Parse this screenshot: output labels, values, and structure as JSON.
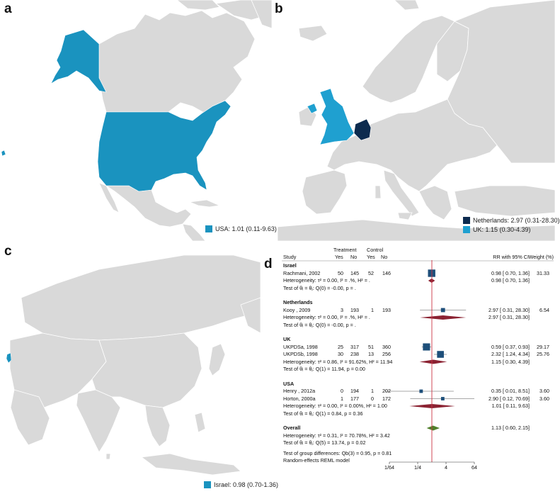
{
  "panels": {
    "a": {
      "letter": "a",
      "legend": [
        {
          "label": "USA: 1.01 (0.11-9.63)",
          "color": "#1a93bf"
        }
      ]
    },
    "b": {
      "letter": "b",
      "legend": [
        {
          "label": "Netherlands: 2.97 (0.31-28.30)",
          "color": "#0d2b4f"
        },
        {
          "label": "UK: 1.15 (0.30-4.39)",
          "color": "#1fa0d0"
        }
      ]
    },
    "c": {
      "letter": "c",
      "legend": [
        {
          "label": "Israel: 0.98 (0.70-1.36)",
          "color": "#1a93bf"
        }
      ]
    },
    "d": {
      "letter": "d"
    }
  },
  "map_colors": {
    "land": "#d9d9d9",
    "border": "#ffffff",
    "highlight": "#1a93bf"
  },
  "forest": {
    "header": {
      "study": "Study",
      "treatment": "Treatment",
      "control": "Control",
      "yes1": "Yes",
      "no1": "No",
      "yes2": "Yes",
      "no2": "No",
      "rr": "RR with 95% CI",
      "weight": "Weight (%)"
    },
    "groups": [
      {
        "name": "Israel",
        "studies": [
          {
            "study": "Rachmani, 2002",
            "ty": "50",
            "tn": "145",
            "cy": "52",
            "cn": "146",
            "rr": 0.98,
            "lo": 0.7,
            "hi": 1.36,
            "ci": "0.98 [  0.70,   1.36]",
            "w": "31.33"
          }
        ],
        "het": "Heterogeneity: τ² = 0.00, I² = .%, H² = .",
        "pooled": {
          "rr": 0.98,
          "lo": 0.7,
          "hi": 1.36,
          "ci": "0.98 [  0.70,   1.36]"
        },
        "test": "Test of θᵢ = θⱼ: Q(0) = -0.00, p = ."
      },
      {
        "name": "Netherlands",
        "studies": [
          {
            "study": "Kooy , 2009",
            "ty": "3",
            "tn": "193",
            "cy": "1",
            "cn": "193",
            "rr": 2.97,
            "lo": 0.31,
            "hi": 28.3,
            "ci": "2.97 [  0.31,  28.30]",
            "w": "6.54"
          }
        ],
        "het": "Heterogeneity: τ² = 0.00, I² = .%, H² = .",
        "pooled": {
          "rr": 2.97,
          "lo": 0.31,
          "hi": 28.3,
          "ci": "2.97 [  0.31,  28.30]"
        },
        "test": "Test of θᵢ = θⱼ: Q(0) = -0.00, p = ."
      },
      {
        "name": "UK",
        "studies": [
          {
            "study": "UKPDSa, 1998",
            "ty": "25",
            "tn": "317",
            "cy": "51",
            "cn": "360",
            "rr": 0.59,
            "lo": 0.37,
            "hi": 0.93,
            "ci": "0.59 [  0.37,   0.93]",
            "w": "29.17"
          },
          {
            "study": "UKPDSb, 1998",
            "ty": "30",
            "tn": "238",
            "cy": "13",
            "cn": "256",
            "rr": 2.32,
            "lo": 1.24,
            "hi": 4.34,
            "ci": "2.32 [  1.24,   4.34]",
            "w": "25.76"
          }
        ],
        "het": "Heterogeneity: τ² = 0.86, I² = 91.62%, H² = 11.94",
        "pooled": {
          "rr": 1.15,
          "lo": 0.3,
          "hi": 4.39,
          "ci": "1.15 [  0.30,   4.39]"
        },
        "test": "Test of θᵢ = θⱼ: Q(1) = 11.94, p = 0.00"
      },
      {
        "name": "USA",
        "studies": [
          {
            "study": "Henry , 2012a",
            "ty": "0",
            "tn": "194",
            "cy": "1",
            "cn": "202",
            "rr": 0.35,
            "lo": 0.01,
            "hi": 8.51,
            "ci": "0.35 [  0.01,   8.51]",
            "w": "3.60"
          },
          {
            "study": "Horton, 2000a",
            "ty": "1",
            "tn": "177",
            "cy": "0",
            "cn": "172",
            "rr": 2.9,
            "lo": 0.12,
            "hi": 70.69,
            "ci": "2.90 [  0.12,  70.69]",
            "w": "3.60"
          }
        ],
        "het": "Heterogeneity: τ² = 0.00, I² = 0.00%, H² = 1.00",
        "pooled": {
          "rr": 1.01,
          "lo": 0.11,
          "hi": 9.63,
          "ci": "1.01 [  0.11,   9.63]"
        },
        "test": "Test of θᵢ = θⱼ: Q(1) = 0.84, p = 0.36"
      }
    ],
    "overall": {
      "name": "Overall",
      "het": "Heterogeneity: τ² = 0.31, I² = 70.78%, H² = 3.42",
      "pooled": {
        "rr": 1.13,
        "lo": 0.6,
        "hi": 2.15,
        "ci": "1.13 [  0.60,   2.15]"
      },
      "test": "Test of θᵢ = θⱼ: Q(5) = 13.74, p = 0.02",
      "group_test": "Test of group differences: Qb(3) = 0.95, p = 0.81",
      "model": "Random-effects REML model"
    },
    "axis": {
      "ticks": [
        {
          "v": 0.015625,
          "label": "1/64"
        },
        {
          "v": 0.25,
          "label": "1/4"
        },
        {
          "v": 4,
          "label": "4"
        },
        {
          "v": 64,
          "label": "64"
        }
      ]
    },
    "colors": {
      "square": "#1e4f7a",
      "diamond": "#8b2232",
      "overall_diamond": "#4f7f2a",
      "refline": "#cc3344"
    }
  }
}
